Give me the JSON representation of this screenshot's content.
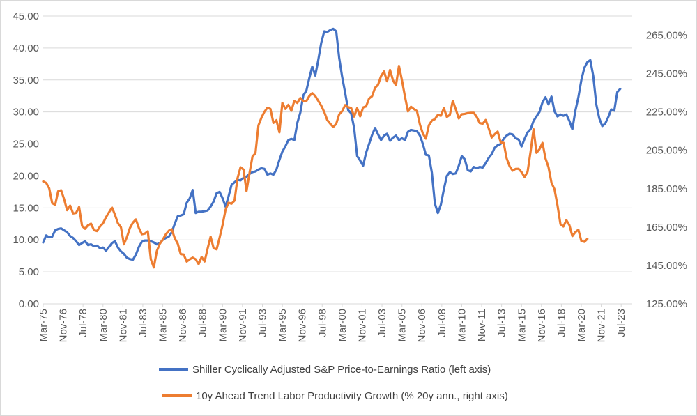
{
  "chart_data": {
    "type": "line",
    "title": "",
    "xlabel": "",
    "ylabel_left": "",
    "ylabel_right": "",
    "grid": "horizontal",
    "legend_position": "bottom",
    "x_start": 1975.17,
    "x_step_years": 0.25,
    "x_ticks": [
      {
        "label": "Mar-75",
        "x": 1975.17
      },
      {
        "label": "Nov-76",
        "x": 1976.83
      },
      {
        "label": "Jul-78",
        "x": 1978.5
      },
      {
        "label": "Mar-80",
        "x": 1980.17
      },
      {
        "label": "Nov-81",
        "x": 1981.83
      },
      {
        "label": "Jul-83",
        "x": 1983.5
      },
      {
        "label": "Mar-85",
        "x": 1985.17
      },
      {
        "label": "Nov-86",
        "x": 1986.83
      },
      {
        "label": "Jul-88",
        "x": 1988.5
      },
      {
        "label": "Mar-90",
        "x": 1990.17
      },
      {
        "label": "Nov-91",
        "x": 1991.83
      },
      {
        "label": "Jul-93",
        "x": 1993.5
      },
      {
        "label": "Mar-95",
        "x": 1995.17
      },
      {
        "label": "Nov-96",
        "x": 1996.83
      },
      {
        "label": "Jul-98",
        "x": 1998.5
      },
      {
        "label": "Mar-00",
        "x": 2000.17
      },
      {
        "label": "Nov-01",
        "x": 2001.83
      },
      {
        "label": "Jul-03",
        "x": 2003.5
      },
      {
        "label": "Mar-05",
        "x": 2005.17
      },
      {
        "label": "Nov-06",
        "x": 2006.83
      },
      {
        "label": "Jul-08",
        "x": 2008.5
      },
      {
        "label": "Mar-10",
        "x": 2010.17
      },
      {
        "label": "Nov-11",
        "x": 2011.83
      },
      {
        "label": "Jul-13",
        "x": 2013.5
      },
      {
        "label": "Mar-15",
        "x": 2015.17
      },
      {
        "label": "Nov-16",
        "x": 2016.83
      },
      {
        "label": "Jul-18",
        "x": 2018.5
      },
      {
        "label": "Mar-20",
        "x": 2020.17
      },
      {
        "label": "Nov-21",
        "x": 2021.83
      },
      {
        "label": "Jul-23",
        "x": 2023.5
      }
    ],
    "x_range": [
      1975.17,
      2024.42
    ],
    "y_left": {
      "range": [
        0,
        45
      ],
      "ticks": [
        "0.00",
        "5.00",
        "10.00",
        "15.00",
        "20.00",
        "25.00",
        "30.00",
        "35.00",
        "40.00",
        "45.00"
      ],
      "tick_values": [
        0,
        5,
        10,
        15,
        20,
        25,
        30,
        35,
        40,
        45
      ]
    },
    "y_right": {
      "range": [
        125,
        275
      ],
      "ticks": [
        "125.00%",
        "145.00%",
        "165.00%",
        "185.00%",
        "205.00%",
        "225.00%",
        "245.00%",
        "265.00%"
      ],
      "tick_values": [
        125,
        145,
        165,
        185,
        205,
        225,
        245,
        265
      ]
    },
    "series": [
      {
        "name": "Shiller Cyclically Adjusted S&P Price-to-Earnings Ratio (left axis)",
        "color": "#4472C4",
        "axis": "left",
        "values": [
          9.6,
          10.7,
          10.4,
          10.5,
          11.5,
          11.7,
          11.8,
          11.5,
          11.2,
          10.6,
          10.3,
          9.8,
          9.2,
          9.5,
          9.8,
          9.2,
          9.3,
          9.0,
          9.1,
          8.7,
          8.8,
          8.3,
          8.9,
          9.5,
          9.8,
          8.8,
          8.2,
          7.8,
          7.2,
          7.0,
          6.9,
          7.7,
          8.9,
          9.7,
          9.9,
          9.9,
          9.8,
          9.6,
          9.3,
          9.5,
          10.0,
          10.3,
          10.5,
          11.2,
          12.5,
          13.7,
          13.8,
          14.0,
          15.8,
          16.5,
          17.8,
          14.2,
          14.4,
          14.4,
          14.5,
          14.6,
          15.2,
          16.0,
          17.3,
          17.5,
          16.5,
          15.2,
          16.8,
          18.6,
          19.0,
          19.4,
          19.3,
          19.7,
          19.9,
          20.3,
          20.6,
          20.7,
          21.0,
          21.2,
          21.1,
          20.2,
          20.4,
          20.2,
          21.0,
          22.5,
          23.8,
          24.6,
          25.6,
          25.8,
          25.6,
          28.3,
          29.9,
          32.6,
          33.3,
          35.3,
          37.1,
          35.7,
          38.1,
          40.8,
          42.6,
          42.5,
          42.8,
          43.0,
          42.6,
          38.5,
          35.5,
          33.0,
          30.3,
          29.8,
          27.5,
          23.1,
          22.4,
          21.6,
          23.6,
          25.0,
          26.4,
          27.5,
          26.5,
          25.6,
          26.3,
          26.6,
          25.5,
          26.0,
          26.3,
          25.6,
          25.9,
          25.6,
          26.9,
          27.2,
          27.1,
          27.0,
          26.3,
          25.0,
          23.3,
          23.2,
          20.5,
          15.7,
          14.2,
          15.5,
          17.9,
          20.0,
          20.6,
          20.3,
          20.4,
          21.6,
          23.1,
          22.6,
          20.9,
          20.7,
          21.4,
          21.2,
          21.4,
          21.3,
          22.0,
          22.8,
          23.4,
          24.4,
          24.8,
          25.0,
          25.8,
          26.3,
          26.6,
          26.5,
          25.9,
          25.7,
          24.6,
          25.8,
          26.8,
          27.3,
          28.6,
          29.3,
          30.0,
          31.5,
          32.3,
          31.2,
          32.4,
          30.1,
          29.3,
          29.6,
          29.4,
          29.6,
          28.6,
          27.3,
          30.2,
          32.3,
          35.0,
          36.9,
          37.8,
          38.1,
          35.6,
          31.2,
          29.0,
          27.8,
          28.2,
          29.2,
          30.4,
          30.2,
          33.1,
          33.6
        ]
      },
      {
        "name": "10y Ahead Trend Labor Productivity Growth (% 20y ann., right axis)",
        "color": "#ED7D31",
        "axis": "right",
        "values": [
          188.8,
          188.0,
          185.2,
          177.5,
          176.6,
          183.7,
          184.2,
          179.5,
          173.8,
          176.2,
          172.1,
          172.4,
          175.5,
          165.6,
          164.1,
          166.0,
          166.8,
          163.4,
          162.9,
          165.3,
          167.0,
          170.1,
          172.7,
          175.2,
          171.5,
          167.0,
          165.0,
          156.0,
          159.8,
          164.5,
          167.3,
          169.0,
          164.5,
          161.3,
          161.6,
          162.8,
          148.2,
          144.0,
          152.5,
          156.3,
          158.5,
          161.2,
          163.1,
          163.9,
          159.2,
          156.4,
          150.9,
          150.7,
          147.0,
          148.2,
          149.1,
          148.2,
          145.7,
          149.4,
          147.1,
          153.8,
          160.0,
          154.0,
          153.4,
          159.5,
          166.2,
          174.0,
          177.7,
          177.2,
          178.8,
          190.5,
          196.2,
          195.0,
          183.8,
          193.2,
          201.8,
          203.5,
          218.0,
          222.0,
          225.1,
          227.2,
          226.6,
          219.3,
          220.7,
          214.4,
          229.7,
          226.6,
          228.7,
          225.6,
          230.8,
          229.7,
          232.3,
          230.6,
          230.6,
          233.3,
          234.8,
          233.3,
          230.8,
          228.3,
          225.0,
          220.8,
          218.9,
          217.2,
          218.8,
          223.7,
          225.4,
          228.6,
          227.5,
          227.1,
          222.6,
          227.0,
          222.7,
          227.4,
          227.9,
          232.0,
          233.2,
          237.6,
          239.2,
          243.7,
          246.1,
          241.0,
          246.9,
          241.4,
          238.9,
          249.0,
          241.5,
          233.0,
          225.3,
          227.7,
          226.5,
          225.5,
          218.4,
          213.7,
          211.1,
          218.1,
          220.5,
          221.3,
          223.5,
          223.0,
          227.0,
          222.4,
          223.5,
          230.8,
          226.4,
          221.6,
          223.8,
          224.0,
          224.4,
          224.6,
          224.6,
          222.4,
          219.2,
          218.9,
          220.8,
          216.5,
          211.7,
          213.4,
          214.8,
          209.2,
          208.9,
          200.9,
          196.7,
          194.4,
          195.3,
          195.4,
          193.6,
          191.1,
          193.8,
          204.3,
          216.0,
          203.7,
          205.6,
          208.9,
          200.8,
          196.3,
          188.1,
          184.8,
          176.4,
          166.5,
          165.3,
          168.6,
          166.0,
          160.3,
          162.4,
          163.6,
          157.7,
          157.3,
          158.9
        ]
      }
    ]
  },
  "legend": {
    "items": [
      {
        "label": "Shiller Cyclically Adjusted S&P Price-to-Earnings Ratio (left axis)",
        "color": "#4472C4"
      },
      {
        "label": "10y Ahead Trend Labor Productivity Growth (% 20y ann., right axis)",
        "color": "#ED7D31"
      }
    ]
  }
}
